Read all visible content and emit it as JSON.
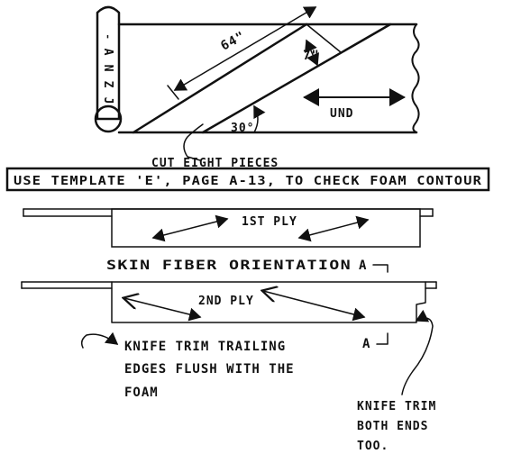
{
  "roll": {
    "label_chars": [
      "A",
      "N",
      "Z",
      "J"
    ],
    "label_prefix": "'"
  },
  "cut_diagram": {
    "length_label": "64\"",
    "width_label": "7\"",
    "angle_label": "30°",
    "direction_label": "UND",
    "cut_note": "CUT EIGHT PIECES"
  },
  "template_note": "USE TEMPLATE 'E', PAGE A-13, TO CHECK FOAM CONTOUR",
  "ply_1": {
    "label": "1ST PLY"
  },
  "section_title": "SKIN FIBER ORIENTATION",
  "section_marker_top": "A",
  "ply_2": {
    "label": "2ND PLY"
  },
  "section_marker_bottom": "A",
  "note_trailing": [
    "KNIFE TRIM TRAILING",
    "EDGES FLUSH WITH THE",
    "FOAM"
  ],
  "note_ends": [
    "KNIFE TRIM",
    "BOTH ENDS",
    "TOO."
  ]
}
